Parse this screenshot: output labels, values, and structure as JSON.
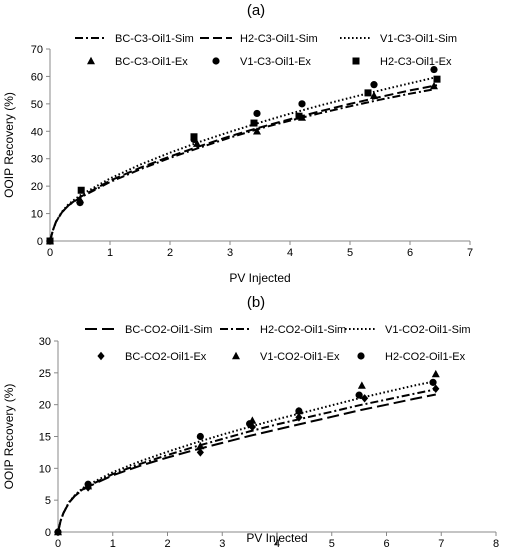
{
  "chart_data": [
    {
      "type": "scatter",
      "title": "(a)",
      "xlabel": "PV Injected",
      "ylabel": "OOIP Recovery (%)",
      "xlim": [
        0,
        7
      ],
      "ylim": [
        0,
        70
      ],
      "xticks": [
        0,
        1,
        2,
        3,
        4,
        5,
        6,
        7
      ],
      "yticks": [
        0,
        10,
        20,
        30,
        40,
        50,
        60,
        70
      ],
      "grid": false,
      "legend_position": "top",
      "series": [
        {
          "name": "BC-C3-Oil1-Sim",
          "kind": "line",
          "dash": "dashdot",
          "x": [
            0,
            0.05,
            0.1,
            0.2,
            0.3,
            0.4,
            0.5,
            1,
            1.5,
            2,
            2.5,
            3,
            3.5,
            4,
            4.5,
            5,
            5.5,
            6,
            6.4
          ],
          "y": [
            0,
            4,
            7,
            10.5,
            12.8,
            14.4,
            15.8,
            21.5,
            26.1,
            30.3,
            34.1,
            37.7,
            41.0,
            43.9,
            46.6,
            49.1,
            51.5,
            53.7,
            55.3
          ]
        },
        {
          "name": "H2-C3-Oil1-Sim",
          "kind": "line",
          "dash": "dash",
          "x": [
            0,
            0.05,
            0.1,
            0.2,
            0.3,
            0.4,
            0.5,
            1,
            1.5,
            2,
            2.5,
            3,
            3.5,
            4,
            4.5,
            5,
            5.5,
            6,
            6.45
          ],
          "y": [
            0,
            4,
            7,
            10.5,
            12.8,
            14.5,
            16.0,
            22.0,
            26.7,
            30.8,
            34.6,
            38.2,
            41.4,
            44.4,
            47.3,
            50.0,
            52.5,
            54.9,
            56.8
          ]
        },
        {
          "name": "V1-C3-Oil1-Sim",
          "kind": "line",
          "dash": "dot",
          "x": [
            0,
            0.05,
            0.1,
            0.2,
            0.3,
            0.4,
            0.5,
            1,
            1.5,
            2,
            2.5,
            3,
            3.5,
            4,
            4.5,
            5,
            5.5,
            6,
            6.45
          ],
          "y": [
            0,
            4,
            7,
            10.7,
            13.2,
            15.0,
            16.6,
            22.8,
            27.8,
            32.2,
            36.2,
            39.8,
            43.2,
            46.4,
            49.4,
            52.2,
            54.9,
            57.5,
            59.8
          ]
        },
        {
          "name": "BC-C3-Oil1-Ex",
          "kind": "points",
          "marker": "triangle",
          "x": [
            0,
            0.5,
            2.45,
            3.45,
            4.2,
            5.4,
            6.4
          ],
          "y": [
            0,
            15,
            35.5,
            40,
            45,
            53,
            56.5
          ]
        },
        {
          "name": "V1-C3-Oil1-Ex",
          "kind": "points",
          "marker": "circle",
          "x": [
            0,
            0.5,
            2.4,
            3.45,
            4.2,
            5.4,
            6.4
          ],
          "y": [
            0,
            14,
            37,
            46.5,
            50,
            57,
            62.5
          ]
        },
        {
          "name": "H2-C3-Oil1-Ex",
          "kind": "points",
          "marker": "square",
          "x": [
            0,
            0.52,
            2.4,
            3.4,
            4.15,
            5.3,
            6.45
          ],
          "y": [
            0,
            18.5,
            38,
            43,
            45.5,
            54,
            59
          ]
        }
      ]
    },
    {
      "type": "scatter",
      "title": "(b)",
      "xlabel": "PV Injected",
      "ylabel": "OOIP Recovery (%)",
      "xlim": [
        0,
        8
      ],
      "ylim": [
        0,
        30
      ],
      "xticks": [
        0,
        1,
        2,
        3,
        4,
        5,
        6,
        7,
        8
      ],
      "yticks": [
        0,
        5,
        10,
        15,
        20,
        25,
        30
      ],
      "grid": false,
      "legend_position": "top",
      "series": [
        {
          "name": "BC-CO2-Oil1-Sim",
          "kind": "line",
          "dash": "longdash",
          "x": [
            0,
            0.05,
            0.1,
            0.2,
            0.3,
            0.4,
            0.5,
            1,
            1.5,
            2,
            2.5,
            3,
            3.5,
            4,
            4.5,
            5,
            5.5,
            6,
            6.5,
            6.9
          ],
          "y": [
            0,
            1.8,
            3.0,
            4.6,
            5.6,
            6.3,
            6.9,
            8.9,
            10.4,
            11.7,
            12.9,
            14.0,
            15.1,
            16.1,
            17.1,
            18.1,
            19.1,
            20.0,
            20.9,
            21.6
          ]
        },
        {
          "name": "H2-CO2-Oil1-Sim",
          "kind": "line",
          "dash": "dashdot",
          "x": [
            0,
            0.05,
            0.1,
            0.2,
            0.3,
            0.4,
            0.5,
            1,
            1.5,
            2,
            2.5,
            3,
            3.5,
            4,
            4.5,
            5,
            5.5,
            6,
            6.5,
            6.9
          ],
          "y": [
            0,
            1.8,
            3.0,
            4.6,
            5.6,
            6.4,
            7.0,
            9.1,
            10.7,
            12.1,
            13.4,
            14.6,
            15.8,
            16.9,
            17.9,
            18.9,
            19.9,
            20.8,
            21.7,
            22.4
          ]
        },
        {
          "name": "V1-CO2-Oil1-Sim",
          "kind": "line",
          "dash": "dot",
          "x": [
            0,
            0.05,
            0.1,
            0.2,
            0.3,
            0.4,
            0.5,
            1,
            1.5,
            2,
            2.5,
            3,
            3.5,
            4,
            4.5,
            5,
            5.5,
            6,
            6.5,
            6.9
          ],
          "y": [
            0,
            1.8,
            3.0,
            4.7,
            5.7,
            6.5,
            7.2,
            9.4,
            11.1,
            12.6,
            14.0,
            15.3,
            16.5,
            17.7,
            18.8,
            19.9,
            21.0,
            22.0,
            23.0,
            23.7
          ]
        },
        {
          "name": "BC-CO2-Oil1-Ex",
          "kind": "points",
          "marker": "diamond",
          "x": [
            0,
            0.55,
            2.6,
            3.55,
            4.4,
            5.6,
            6.9
          ],
          "y": [
            0,
            7,
            12.5,
            16.5,
            18,
            21,
            22.5
          ]
        },
        {
          "name": "V1-CO2-Oil1-Ex",
          "kind": "points",
          "marker": "triangle",
          "x": [
            0,
            0.55,
            2.6,
            3.55,
            4.4,
            5.55,
            6.9
          ],
          "y": [
            0,
            7.2,
            13.5,
            17.5,
            19,
            23,
            24.8
          ]
        },
        {
          "name": "H2-CO2-Oil1-Ex",
          "kind": "points",
          "marker": "circle",
          "x": [
            0,
            0.55,
            2.6,
            3.5,
            4.4,
            5.5,
            6.85
          ],
          "y": [
            0,
            7.5,
            15,
            17,
            19,
            21.5,
            23.5
          ]
        }
      ]
    }
  ]
}
